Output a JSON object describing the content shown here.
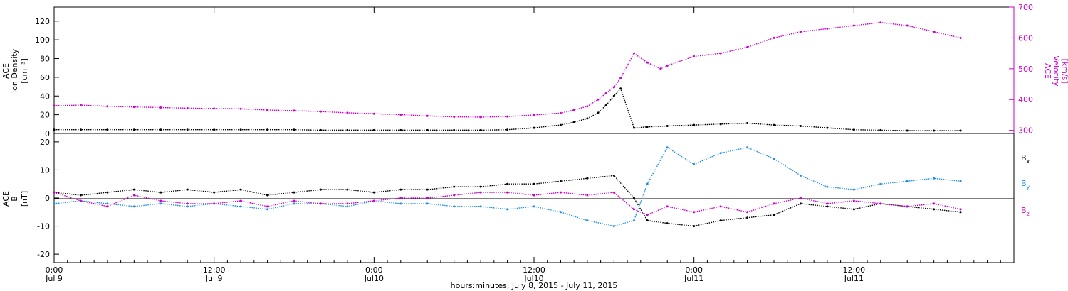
{
  "chart_data": [
    {
      "type": "scatter",
      "panel": "top",
      "ylabel_lines": [
        "ACE",
        "Ion Density",
        "[cm⁻³]"
      ],
      "y2label_lines": [
        "ACE",
        "Velocity",
        "[km/s]"
      ],
      "ylim": [
        0,
        135
      ],
      "y2lim": [
        290,
        700
      ],
      "yticks": [
        "0",
        "20",
        "40",
        "60",
        "80",
        "100",
        "120"
      ],
      "y2ticks": [
        "300",
        "400",
        "500",
        "600",
        "700"
      ],
      "colors": {
        "density": "#000000",
        "velocity": "#cc00cc"
      },
      "series": [
        {
          "points": [
            [
              0,
              4
            ],
            [
              2,
              4
            ],
            [
              4,
              4
            ],
            [
              6,
              4
            ],
            [
              8,
              4
            ],
            [
              10,
              4
            ],
            [
              12,
              4
            ],
            [
              14,
              4
            ],
            [
              16,
              4
            ],
            [
              18,
              4
            ],
            [
              20,
              3.5
            ],
            [
              22,
              3.5
            ],
            [
              24,
              3.5
            ],
            [
              26,
              3.5
            ],
            [
              28,
              3.5
            ],
            [
              30,
              3.5
            ],
            [
              32,
              3.5
            ],
            [
              34,
              4
            ],
            [
              36,
              6
            ],
            [
              38,
              9
            ],
            [
              39,
              12
            ],
            [
              40,
              16
            ],
            [
              40.8,
              22
            ],
            [
              41.4,
              30
            ],
            [
              42,
              40
            ],
            [
              42.5,
              48
            ],
            [
              43.5,
              6
            ],
            [
              44.5,
              7
            ],
            [
              46,
              8
            ],
            [
              48,
              9
            ],
            [
              50,
              10
            ],
            [
              52,
              11
            ],
            [
              54,
              9
            ],
            [
              56,
              8
            ],
            [
              58,
              6
            ],
            [
              60,
              4
            ],
            [
              62,
              3.5
            ],
            [
              64,
              3
            ],
            [
              66,
              3
            ],
            [
              68,
              3
            ]
          ]
        },
        {
          "points": [
            [
              0,
              380
            ],
            [
              2,
              382
            ],
            [
              4,
              378
            ],
            [
              6,
              376
            ],
            [
              8,
              374
            ],
            [
              10,
              372
            ],
            [
              12,
              371
            ],
            [
              14,
              370
            ],
            [
              16,
              366
            ],
            [
              18,
              364
            ],
            [
              20,
              361
            ],
            [
              22,
              357
            ],
            [
              24,
              354
            ],
            [
              26,
              351
            ],
            [
              28,
              347
            ],
            [
              30,
              344
            ],
            [
              32,
              343
            ],
            [
              34,
              345
            ],
            [
              36,
              350
            ],
            [
              38,
              356
            ],
            [
              39,
              366
            ],
            [
              40,
              378
            ],
            [
              40.8,
              400
            ],
            [
              41.4,
              420
            ],
            [
              42,
              440
            ],
            [
              42.5,
              470
            ],
            [
              43.5,
              550
            ],
            [
              44.5,
              520
            ],
            [
              45.5,
              500
            ],
            [
              46,
              510
            ],
            [
              48,
              540
            ],
            [
              50,
              550
            ],
            [
              52,
              570
            ],
            [
              54,
              600
            ],
            [
              56,
              620
            ],
            [
              58,
              630
            ],
            [
              60,
              640
            ],
            [
              62,
              650
            ],
            [
              64,
              640
            ],
            [
              66,
              620
            ],
            [
              68,
              600
            ]
          ]
        }
      ]
    },
    {
      "type": "scatter",
      "panel": "bottom",
      "ylabel_lines": [
        "ACE",
        "B",
        "[nT]"
      ],
      "ylim": [
        -23,
        23
      ],
      "yticks": [
        "-20",
        "-10",
        "0",
        "10",
        "20"
      ],
      "xlabel": "hours:minutes, July  8, 2015 - July 11, 2015",
      "xtick_top": [
        "0:00",
        "12:00",
        "0:00",
        "12:00",
        "0:00",
        "12:00"
      ],
      "xtick_bottom": [
        "Jul 9",
        "Jul 9",
        "Jul10",
        "Jul10",
        "Jul11",
        "Jul11"
      ],
      "xtick_hours": [
        0,
        12,
        24,
        36,
        48,
        60
      ],
      "xlim_hours": [
        0,
        72
      ],
      "colors": {
        "bx": "#000000",
        "by": "#1f8fe6",
        "bz": "#cc00cc"
      },
      "series": [
        {
          "points": [
            [
              0,
              2
            ],
            [
              2,
              1
            ],
            [
              4,
              2
            ],
            [
              6,
              3
            ],
            [
              8,
              2
            ],
            [
              10,
              3
            ],
            [
              12,
              2
            ],
            [
              14,
              3
            ],
            [
              16,
              1
            ],
            [
              18,
              2
            ],
            [
              20,
              3
            ],
            [
              22,
              3
            ],
            [
              24,
              2
            ],
            [
              26,
              3
            ],
            [
              28,
              3
            ],
            [
              30,
              4
            ],
            [
              32,
              4
            ],
            [
              34,
              5
            ],
            [
              36,
              5
            ],
            [
              38,
              6
            ],
            [
              40,
              7
            ],
            [
              42,
              8
            ],
            [
              43.5,
              0
            ],
            [
              44.5,
              -8
            ],
            [
              46,
              -9
            ],
            [
              48,
              -10
            ],
            [
              50,
              -8
            ],
            [
              52,
              -7
            ],
            [
              54,
              -6
            ],
            [
              56,
              -2
            ],
            [
              58,
              -3
            ],
            [
              60,
              -4
            ],
            [
              62,
              -2
            ],
            [
              64,
              -3
            ],
            [
              66,
              -4
            ],
            [
              68,
              -5
            ]
          ]
        },
        {
          "points": [
            [
              0,
              -2
            ],
            [
              2,
              -1
            ],
            [
              4,
              -2
            ],
            [
              6,
              -3
            ],
            [
              8,
              -2
            ],
            [
              10,
              -3
            ],
            [
              12,
              -2
            ],
            [
              14,
              -3
            ],
            [
              16,
              -4
            ],
            [
              18,
              -2
            ],
            [
              20,
              -2
            ],
            [
              22,
              -3
            ],
            [
              24,
              -1
            ],
            [
              26,
              -2
            ],
            [
              28,
              -2
            ],
            [
              30,
              -3
            ],
            [
              32,
              -3
            ],
            [
              34,
              -4
            ],
            [
              36,
              -3
            ],
            [
              38,
              -5
            ],
            [
              40,
              -8
            ],
            [
              42,
              -10
            ],
            [
              43.5,
              -8
            ],
            [
              44.5,
              5
            ],
            [
              46,
              18
            ],
            [
              48,
              12
            ],
            [
              50,
              16
            ],
            [
              52,
              18
            ],
            [
              54,
              14
            ],
            [
              56,
              8
            ],
            [
              58,
              4
            ],
            [
              60,
              3
            ],
            [
              62,
              5
            ],
            [
              64,
              6
            ],
            [
              66,
              7
            ],
            [
              68,
              6
            ]
          ]
        },
        {
          "points": [
            [
              0,
              2
            ],
            [
              2,
              -1
            ],
            [
              4,
              -3
            ],
            [
              6,
              1
            ],
            [
              8,
              -1
            ],
            [
              10,
              -2
            ],
            [
              12,
              -2
            ],
            [
              14,
              -1
            ],
            [
              16,
              -3
            ],
            [
              18,
              -1
            ],
            [
              20,
              -2
            ],
            [
              22,
              -2
            ],
            [
              24,
              -1
            ],
            [
              26,
              0
            ],
            [
              28,
              0
            ],
            [
              30,
              1
            ],
            [
              32,
              2
            ],
            [
              34,
              2
            ],
            [
              36,
              1
            ],
            [
              38,
              2
            ],
            [
              40,
              1
            ],
            [
              42,
              2
            ],
            [
              43.5,
              -4
            ],
            [
              44.5,
              -6
            ],
            [
              46,
              -3
            ],
            [
              48,
              -5
            ],
            [
              50,
              -3
            ],
            [
              52,
              -5
            ],
            [
              54,
              -2
            ],
            [
              56,
              0
            ],
            [
              58,
              -2
            ],
            [
              60,
              -1
            ],
            [
              62,
              -2
            ],
            [
              64,
              -3
            ],
            [
              66,
              -2
            ],
            [
              68,
              -4
            ]
          ]
        }
      ],
      "legend": {
        "bx": "B",
        "bx_sub": "x",
        "by": "B",
        "by_sub": "y",
        "bz": "B",
        "bz_sub": "z"
      }
    }
  ]
}
